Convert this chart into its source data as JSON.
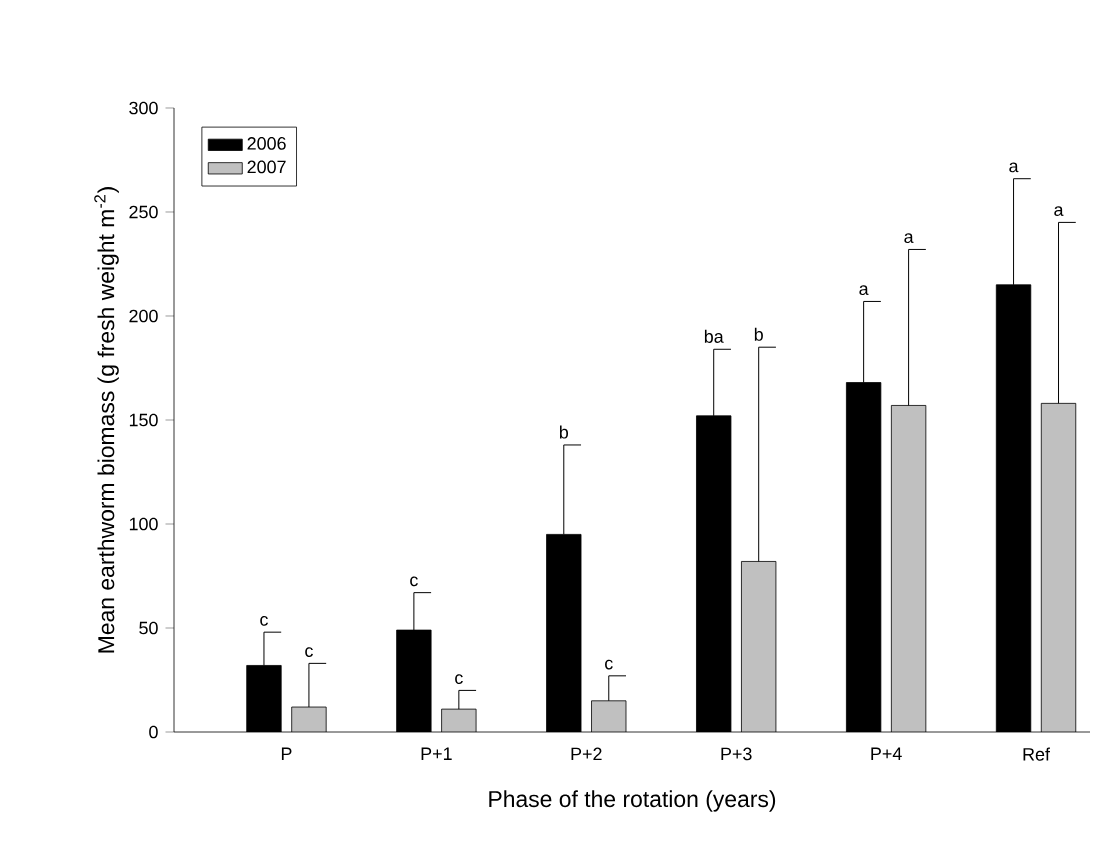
{
  "chart_data": {
    "type": "bar",
    "xlabel": "Phase of the rotation (years)",
    "ylabel": "Mean earthworm biomass (g fresh weight m$^{-2}$)",
    "categories": [
      "P",
      "P+1",
      "P+2",
      "P+3",
      "P+4",
      "Ref"
    ],
    "series": [
      {
        "name": "2006",
        "color": "#000000",
        "values": [
          32,
          49,
          95,
          152,
          168,
          215
        ],
        "errors": [
          [
            32,
            48
          ],
          [
            49,
            67
          ],
          [
            95,
            138
          ],
          [
            152,
            184
          ],
          [
            168,
            207
          ],
          [
            215,
            266
          ]
        ]
      },
      {
        "name": "2007",
        "color": "#c0c0c0",
        "values": [
          12,
          11,
          15,
          82,
          157,
          158
        ],
        "errors": [
          [
            12,
            33
          ],
          [
            11,
            20
          ],
          [
            15,
            27
          ],
          [
            82,
            185
          ],
          [
            157,
            232
          ],
          [
            158,
            245
          ]
        ]
      }
    ],
    "ylim": [
      0,
      300
    ],
    "yticks": [
      0,
      50,
      100,
      150,
      200,
      250,
      300
    ],
    "legend": "top left",
    "annotations": [
      "c",
      "c",
      "c",
      "c",
      "b",
      "c",
      "ba",
      "b",
      "a",
      "a",
      "a",
      "a"
    ]
  }
}
